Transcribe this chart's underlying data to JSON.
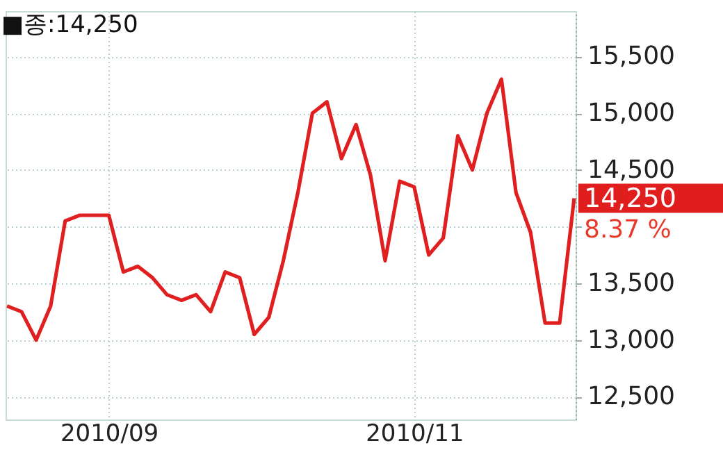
{
  "chart_data": {
    "type": "line",
    "categories": [
      null,
      null,
      null,
      null,
      null,
      null,
      null,
      "2010/09",
      null,
      null,
      null,
      null,
      null,
      null,
      null,
      null,
      null,
      null,
      null,
      null,
      null,
      null,
      null,
      null,
      null,
      null,
      null,
      null,
      "2010/11",
      null,
      null,
      null,
      null,
      null,
      null,
      null,
      null,
      null,
      null,
      null
    ],
    "series": [
      {
        "color": "#e02020",
        "values": [
          13300,
          13250,
          13000,
          13300,
          14050,
          14100,
          14100,
          14100,
          13600,
          13650,
          13550,
          13400,
          13350,
          13400,
          13250,
          13600,
          13550,
          13050,
          13200,
          13700,
          14300,
          15000,
          15100,
          14600,
          14900,
          14450,
          13700,
          14400,
          14350,
          13750,
          13900,
          14800,
          14500,
          15000,
          15300,
          14300,
          13950,
          13150,
          13150,
          14250
        ]
      }
    ],
    "ylim": [
      12300,
      15900
    ],
    "yticks": [
      {
        "value": 12500,
        "label": "12,500"
      },
      {
        "value": 13000,
        "label": "13,000"
      },
      {
        "value": 13500,
        "label": "13,500"
      },
      {
        "value": 14000,
        "label": null
      },
      {
        "value": 14500,
        "label": "14,500"
      },
      {
        "value": 15000,
        "label": "15,000"
      },
      {
        "value": 15500,
        "label": "15,500"
      }
    ],
    "grid": true,
    "marker": "none",
    "line_style": "solid",
    "annotations": [
      "■종:14,250",
      "14,250",
      "8.37 %"
    ]
  }
}
